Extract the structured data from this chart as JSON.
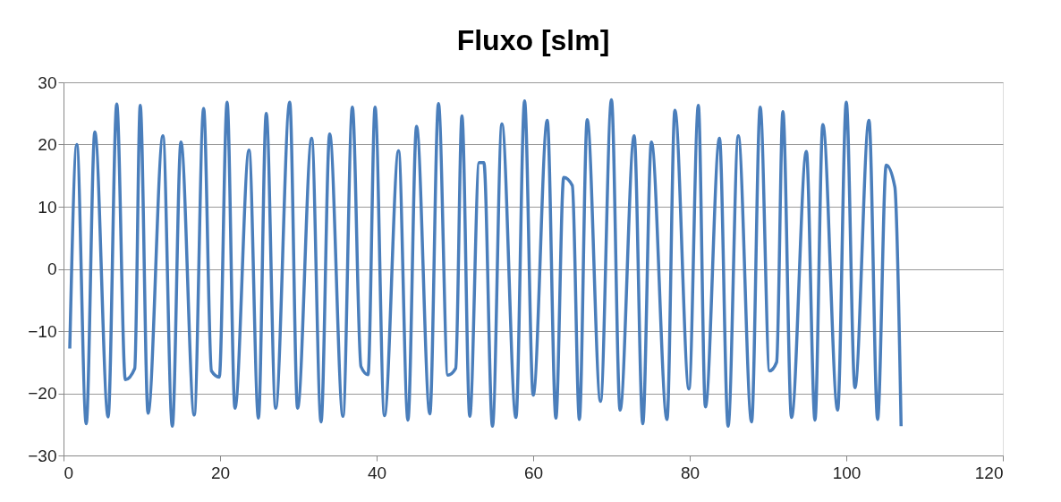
{
  "chart_data": {
    "type": "line",
    "title": "Fluxo [slm]",
    "x": [
      0.8,
      1.7,
      2.9,
      4.0,
      5.7,
      6.8,
      7.9,
      9.1,
      9.8,
      10.8,
      12.7,
      13.9,
      15.0,
      16.7,
      17.9,
      18.9,
      19.9,
      20.9,
      21.9,
      23.7,
      24.9,
      25.9,
      27.1,
      28.9,
      29.9,
      31.7,
      32.9,
      34.0,
      35.7,
      36.9,
      38.0,
      38.9,
      39.8,
      41.0,
      42.8,
      44.0,
      45.1,
      46.8,
      47.9,
      49.1,
      50.1,
      50.9,
      51.9,
      53.1,
      53.7,
      54.8,
      56.0,
      57.8,
      58.9,
      60.0,
      61.8,
      62.9,
      63.9,
      65.0,
      65.9,
      66.9,
      68.6,
      70.0,
      71.1,
      72.9,
      74.0,
      75.1,
      77.1,
      78.1,
      79.9,
      81.1,
      82.0,
      83.8,
      84.9,
      86.2,
      87.9,
      89.0,
      90.2,
      91.1,
      91.9,
      93.0,
      94.9,
      96.0,
      97.0,
      98.9,
      100.0,
      101.1,
      102.9,
      104.0,
      105.1,
      106.2,
      107.0
    ],
    "series": [
      {
        "color": "#4a7ebb",
        "values": [
          -12.8,
          20,
          -24.9,
          22,
          -23.8,
          26.5,
          -17.8,
          -16,
          26.3,
          -23.2,
          21.4,
          -25.3,
          20.4,
          -23.5,
          25.8,
          -16.4,
          -17.4,
          26.8,
          -22.4,
          19.1,
          -24,
          25,
          -22.4,
          26.8,
          -22.4,
          21,
          -24.6,
          21.7,
          -23.7,
          26,
          -15.7,
          -17,
          26,
          -23.6,
          19,
          -24.3,
          22.9,
          -23.3,
          26.6,
          -17.1,
          -16,
          24.6,
          -23.7,
          17.1,
          17.1,
          -25.3,
          23.3,
          -23.9,
          27,
          -20.3,
          23.9,
          -24,
          14.7,
          13.4,
          -24.2,
          24,
          -21.3,
          27.2,
          -22.7,
          21.4,
          -24.9,
          20.4,
          -24.2,
          25.5,
          -19.3,
          26.3,
          -22.2,
          21,
          -25.3,
          21.4,
          -24.6,
          26,
          -16.4,
          -15,
          25.3,
          -23.9,
          18.9,
          -24.3,
          23.2,
          -22.7,
          26.8,
          -19.1,
          23.9,
          -24.2,
          16.7,
          13.2,
          -25.3
        ]
      }
    ],
    "xlim": [
      0,
      120
    ],
    "xticks": [
      0,
      20,
      40,
      60,
      80,
      100,
      120
    ],
    "ylim": [
      -30,
      30
    ],
    "yticks": [
      -30,
      -20,
      -10,
      0,
      10,
      20,
      30
    ],
    "grid": "y",
    "legend": false,
    "marker": "none",
    "line_style": "solid"
  }
}
